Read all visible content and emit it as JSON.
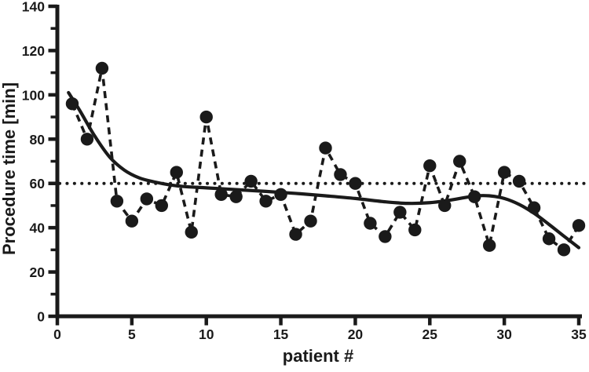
{
  "figure": {
    "background": "#ffffff",
    "ink_color": "#1a1a1a"
  },
  "chart_data": {
    "type": "scatter",
    "title": "",
    "xlabel": "patient #",
    "ylabel": "Procedure time [min]",
    "xlim": [
      0,
      35
    ],
    "ylim": [
      0,
      140
    ],
    "grid": "off",
    "legend": "none",
    "x_major_ticks": [
      0,
      5,
      10,
      15,
      20,
      25,
      30,
      35
    ],
    "y_major_ticks": [
      0,
      20,
      40,
      60,
      80,
      100,
      120,
      140
    ],
    "y_minor_ticks": [
      10,
      30,
      50,
      70,
      90,
      110,
      130
    ],
    "reference_line": {
      "y": 60,
      "style": "dotted"
    },
    "series": [
      {
        "name": "procedure-time-per-patient",
        "style": "filled-circles-dashed-line",
        "x": [
          1,
          2,
          3,
          4,
          5,
          6,
          7,
          8,
          9,
          10,
          11,
          12,
          13,
          14,
          15,
          16,
          17,
          18,
          19,
          20,
          21,
          22,
          23,
          24,
          25,
          26,
          27,
          28,
          29,
          30,
          31,
          32,
          33,
          34,
          35
        ],
        "values": [
          96,
          80,
          112,
          52,
          43,
          53,
          50,
          65,
          38,
          90,
          55,
          54,
          61,
          52,
          55,
          37,
          43,
          76,
          64,
          60,
          42,
          36,
          47,
          39,
          68,
          50,
          70,
          54,
          32,
          65,
          61,
          49,
          35,
          30,
          41
        ]
      },
      {
        "name": "smoothed-trend",
        "style": "solid-smooth-curve",
        "x": [
          0.75,
          1.5,
          2.5,
          3.5,
          4.5,
          5.5,
          6.5,
          7.5,
          8.5,
          10,
          12,
          14,
          16,
          18,
          20,
          22,
          23.5,
          25,
          26.5,
          28,
          29,
          30,
          31,
          32,
          33,
          34,
          35
        ],
        "values": [
          101,
          93,
          81.5,
          72,
          66,
          62.5,
          60.7,
          59.4,
          58.6,
          58,
          57.2,
          56.4,
          55.5,
          54.4,
          53.2,
          51.7,
          51,
          51.3,
          52.6,
          54.3,
          54.4,
          53.2,
          50.5,
          46.5,
          41.5,
          36.2,
          31
        ]
      }
    ]
  }
}
